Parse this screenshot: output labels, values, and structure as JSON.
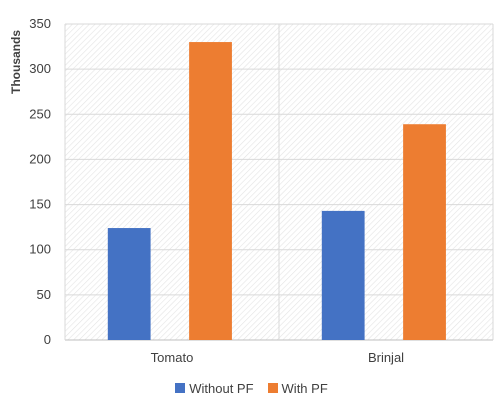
{
  "chart_data": {
    "type": "bar",
    "title": "",
    "xlabel": "",
    "ylabel": "Thousands",
    "ylim": [
      0,
      350
    ],
    "yticks": [
      0,
      50,
      100,
      150,
      200,
      250,
      300,
      350
    ],
    "categories": [
      "Tomato",
      "Brinjal"
    ],
    "series": [
      {
        "name": "Without PF",
        "color": "#4472C4",
        "values": [
          124,
          143
        ]
      },
      {
        "name": "With PF",
        "color": "#ED7D31",
        "values": [
          330,
          239
        ]
      }
    ],
    "grid": true,
    "legend_position": "bottom"
  }
}
